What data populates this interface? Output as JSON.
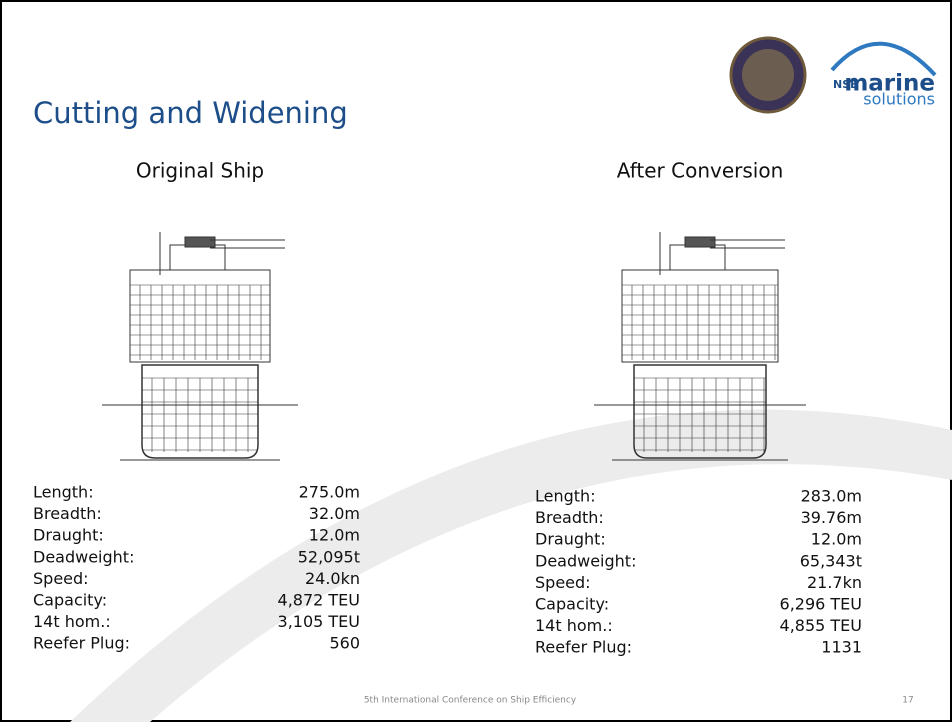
{
  "header": {
    "title": "Cutting and Widening",
    "logo": {
      "prefix": "NSB",
      "name": "marine",
      "tagline": "solutions"
    }
  },
  "columns": [
    {
      "heading": "Original Ship",
      "specs": [
        {
          "label": "Length:",
          "value": "275.0m"
        },
        {
          "label": "Breadth:",
          "value": "32.0m"
        },
        {
          "label": "Draught:",
          "value": "12.0m"
        },
        {
          "label": "Deadweight:",
          "value": "52,095t"
        },
        {
          "label": "Speed:",
          "value": "24.0kn"
        },
        {
          "label": "Capacity:",
          "value": "4,872 TEU"
        },
        {
          "label": "14t hom.:",
          "value": "3,105 TEU"
        },
        {
          "label": "Reefer Plug:",
          "value": "560"
        }
      ]
    },
    {
      "heading": "After Conversion",
      "specs": [
        {
          "label": "Length:",
          "value": "283.0m"
        },
        {
          "label": "Breadth:",
          "value": "39.76m"
        },
        {
          "label": "Draught:",
          "value": "12.0m"
        },
        {
          "label": "Deadweight:",
          "value": "65,343t"
        },
        {
          "label": "Speed:",
          "value": "21.7kn"
        },
        {
          "label": "Capacity:",
          "value": "6,296 TEU"
        },
        {
          "label": "14t hom.:",
          "value": "4,855 TEU"
        },
        {
          "label": "Reefer Plug:",
          "value": "1131"
        }
      ]
    }
  ],
  "footer": {
    "conference": "5th International Conference on Ship Efficiency",
    "page": "17"
  }
}
